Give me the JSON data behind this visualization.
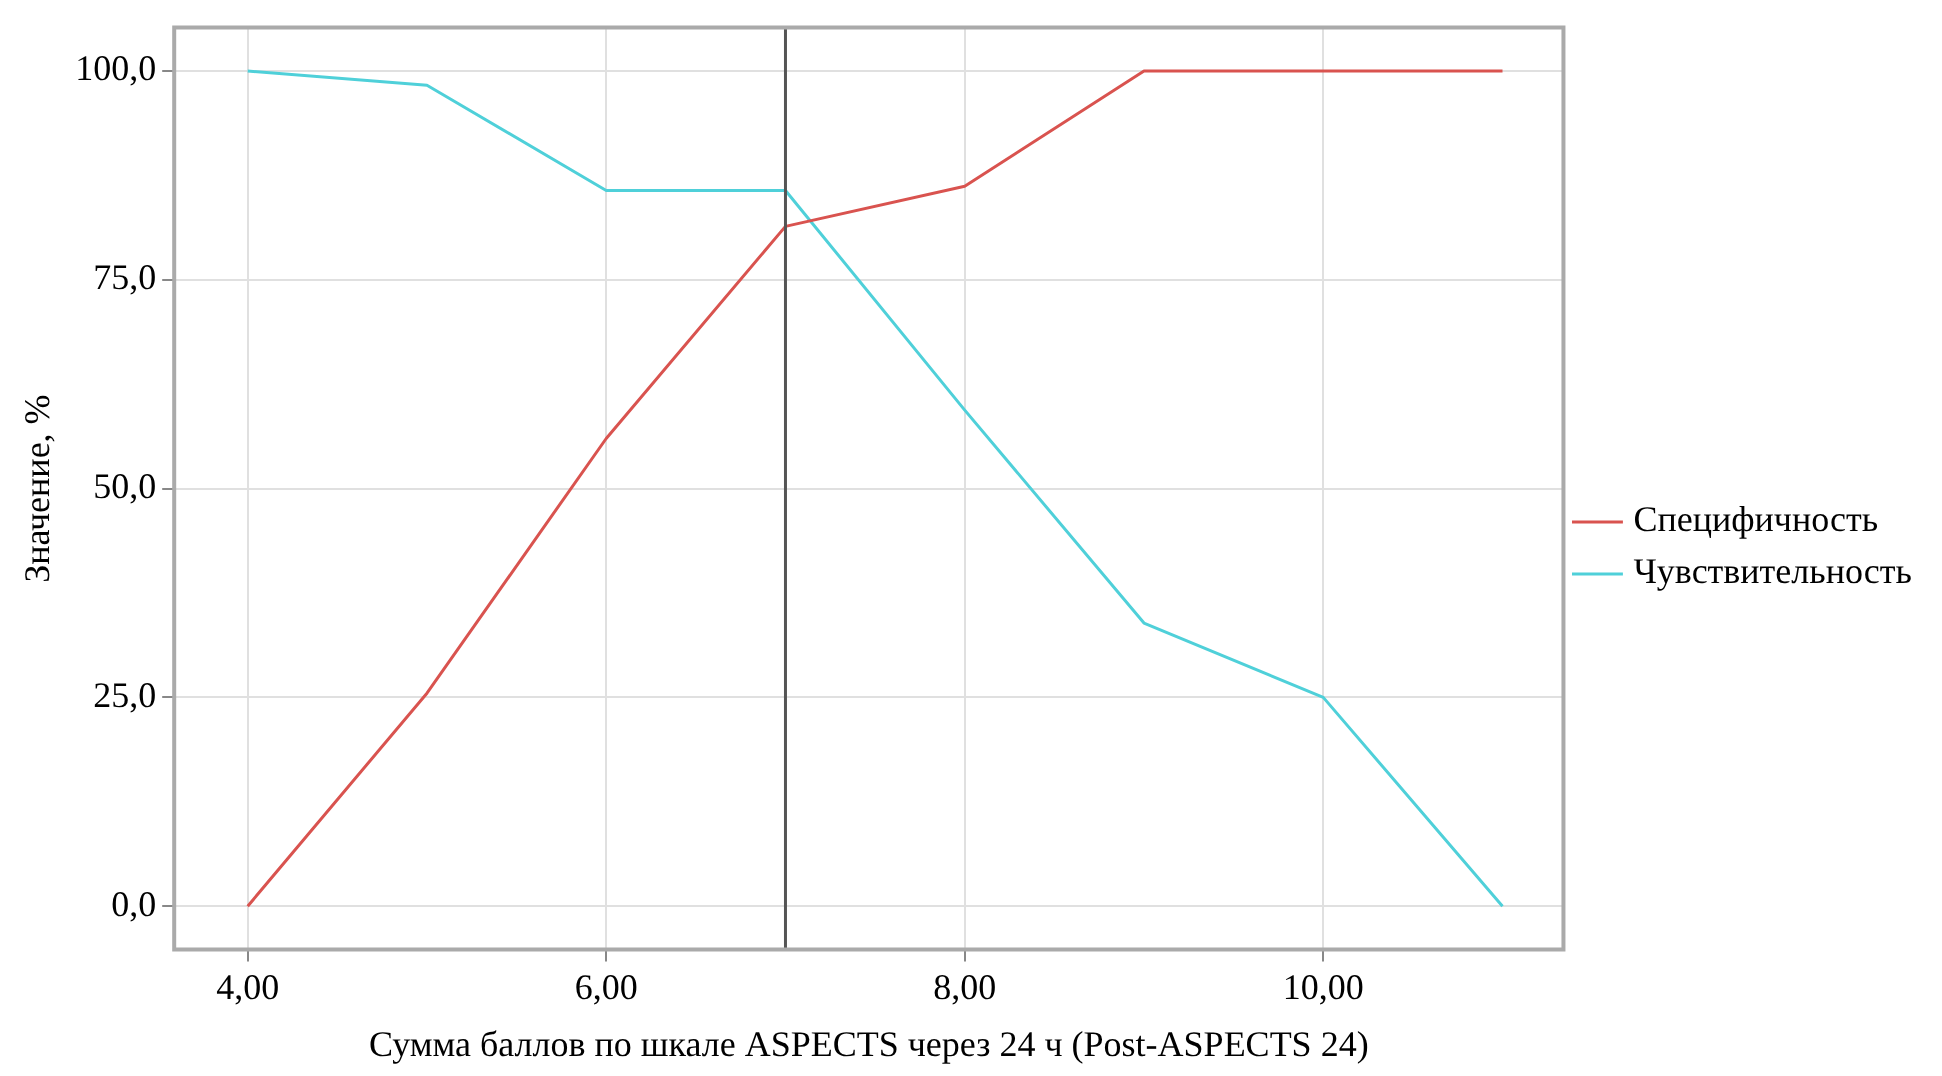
{
  "chart_data": {
    "type": "line",
    "xlabel": "Сумма баллов по шкале ASPECTS через 24 ч (Post-ASPECTS 24)",
    "ylabel": "Значение, %",
    "x": [
      4,
      5,
      6,
      7,
      8,
      9,
      10,
      11
    ],
    "series": [
      {
        "name": "Специфичность",
        "color": "#d9534f",
        "values": [
          0,
          25.5,
          56,
          81.4,
          86.2,
          100,
          100,
          100
        ]
      },
      {
        "name": "Чувствительность",
        "color": "#4fd0d9",
        "values": [
          100,
          98.3,
          85.7,
          85.7,
          59.4,
          33.9,
          25,
          0
        ]
      }
    ],
    "xlim": [
      3.59,
      11.34
    ],
    "ylim": [
      -5.2,
      105.2
    ],
    "xticks": [
      {
        "value": 4,
        "label": "4,00"
      },
      {
        "value": 6,
        "label": "6,00"
      },
      {
        "value": 8,
        "label": "8,00"
      },
      {
        "value": 10,
        "label": "10,00"
      }
    ],
    "yticks": [
      {
        "value": 0,
        "label": "0,0"
      },
      {
        "value": 25,
        "label": "25,0"
      },
      {
        "value": 50,
        "label": "50,0"
      },
      {
        "value": 75,
        "label": "75,0"
      },
      {
        "value": 100,
        "label": "100,0"
      }
    ],
    "ref_lines": [
      {
        "axis": "x",
        "value": 7,
        "color": "#555555"
      }
    ],
    "grid": true,
    "legend": "right",
    "marker": "none",
    "line_style": "solid"
  }
}
